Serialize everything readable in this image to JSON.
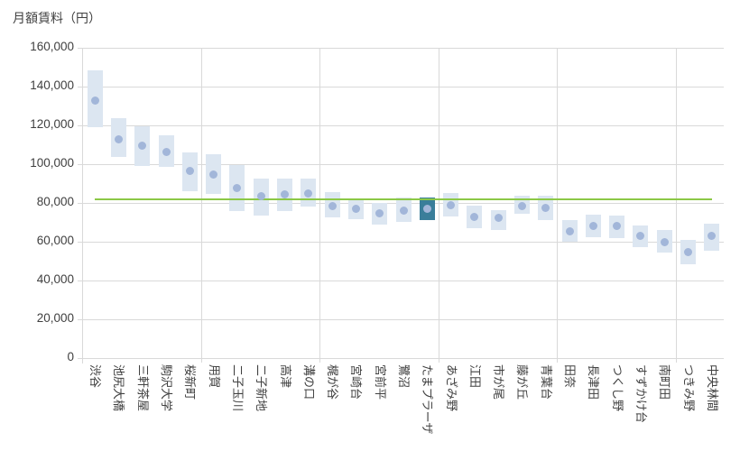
{
  "chart_data": {
    "type": "range-bar-with-marker",
    "title": "月額賃料（円）",
    "categories": [
      "渋谷",
      "池尻大橋",
      "三軒茶屋",
      "駒沢大学",
      "桜新町",
      "用賀",
      "二子玉川",
      "二子新地",
      "高津",
      "溝の口",
      "梶が谷",
      "宮崎台",
      "宮前平",
      "鷺沼",
      "たまプラーザ",
      "あざみ野",
      "江田",
      "市が尾",
      "藤が丘",
      "青葉台",
      "田奈",
      "長津田",
      "つくし野",
      "すずかけ台",
      "南町田",
      "つきみ野",
      "中央林間"
    ],
    "series": [
      {
        "name": "range_min",
        "values": [
          119000,
          103500,
          99000,
          98500,
          86000,
          84500,
          76000,
          73500,
          76000,
          78000,
          72500,
          71500,
          69000,
          70000,
          71000,
          73000,
          67000,
          66000,
          74500,
          71000,
          60000,
          62500,
          62000,
          57000,
          54500,
          48500,
          55500
        ]
      },
      {
        "name": "range_max",
        "values": [
          148500,
          123500,
          119500,
          115000,
          106000,
          105000,
          99500,
          92500,
          92500,
          92500,
          85500,
          82500,
          80000,
          83000,
          83000,
          85000,
          78500,
          76500,
          83500,
          83500,
          71000,
          74000,
          73500,
          68500,
          66000,
          61000,
          69500
        ]
      },
      {
        "name": "marker",
        "values": [
          133000,
          113000,
          109500,
          106500,
          96500,
          94500,
          87500,
          83500,
          84500,
          85000,
          78500,
          77000,
          74500,
          76000,
          77000,
          79000,
          73000,
          72500,
          78500,
          77500,
          65500,
          68000,
          68000,
          63000,
          60000,
          54500,
          63000
        ]
      }
    ],
    "reference_line": {
      "value": 82000,
      "color": "#8cc846"
    },
    "highlight": {
      "index": 14,
      "category": "たまプラーザ",
      "color": "#3a7e9a"
    },
    "colors": {
      "bar": "#dce6f1",
      "marker": "#a2b6d9",
      "grid": "#d9d9d9",
      "text": "#404040"
    },
    "ylim": [
      0,
      160000
    ],
    "ytick_interval": 20000,
    "ytick_labels": [
      "0",
      "20,000",
      "40,000",
      "60,000",
      "80,000",
      "100,000",
      "120,000",
      "140,000",
      "160,000"
    ],
    "xtick_group": 5,
    "grid": true,
    "legend": "none"
  }
}
